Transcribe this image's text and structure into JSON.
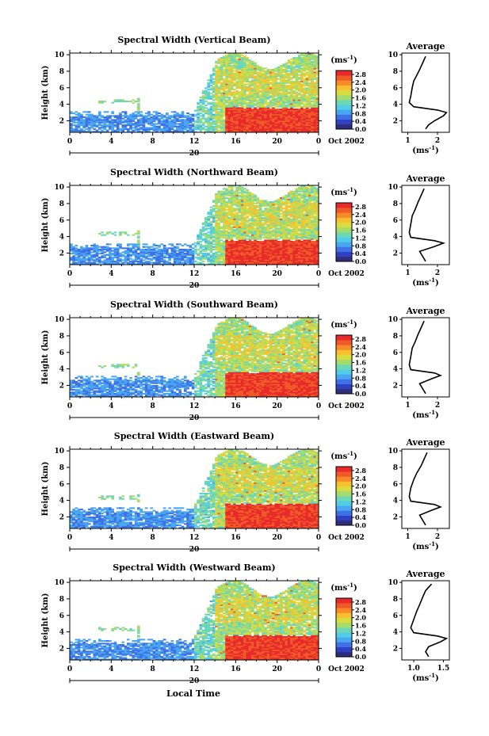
{
  "figure": {
    "date_label": "Oct 2002",
    "day_label": "20",
    "xlabel": "Local Time",
    "colorbar_unit_base": "(ms",
    "colorbar_unit_exp": "-1",
    "colorbar_unit_close": ")",
    "avg_xunit_base": "(ms",
    "avg_xunit_exp": "-1",
    "avg_xunit_close": ")",
    "colors": {
      "scale": [
        "#2e2e7a",
        "#3040c0",
        "#3f70e6",
        "#49a6f0",
        "#52cde8",
        "#6ed8b4",
        "#a6dc6c",
        "#d8dc40",
        "#f8c030",
        "#f88a28",
        "#f05a28",
        "#e82a2a"
      ]
    }
  },
  "chart_data": [
    {
      "type": "heatmap",
      "title": "Spectral Width (Vertical Beam)",
      "ylabel": "Height (km)",
      "xlim": [
        0,
        24
      ],
      "ylim": [
        0.6,
        10.2
      ],
      "xticks": [
        "0",
        "4",
        "8",
        "12",
        "16",
        "20",
        "0"
      ],
      "yticks": [
        "2",
        "4",
        "6",
        "8",
        "10"
      ],
      "colorbar": {
        "min": 0.0,
        "max": 3.0,
        "ticks": [
          "0.0",
          "0.4",
          "0.8",
          "1.2",
          "1.6",
          "2.0",
          "2.4",
          "2.8"
        ]
      },
      "average": {
        "title": "Average",
        "xlim": [
          0.8,
          2.4
        ],
        "xticks": [
          "1",
          "2"
        ],
        "ylim": [
          0.6,
          10.2
        ],
        "yticks": [
          "2",
          "4",
          "6",
          "8",
          "10"
        ],
        "profile": [
          [
            1.6,
            1.0
          ],
          [
            1.7,
            1.5
          ],
          [
            1.9,
            2.0
          ],
          [
            2.2,
            2.6
          ],
          [
            2.3,
            3.0
          ],
          [
            2.0,
            3.3
          ],
          [
            1.2,
            3.7
          ],
          [
            1.05,
            4.2
          ],
          [
            1.1,
            5.0
          ],
          [
            1.15,
            6.0
          ],
          [
            1.2,
            6.8
          ],
          [
            1.3,
            7.5
          ],
          [
            1.4,
            8.2
          ],
          [
            1.5,
            9.0
          ],
          [
            1.6,
            9.8
          ]
        ]
      }
    },
    {
      "type": "heatmap",
      "title": "Spectral Width (Northward Beam)",
      "ylabel": "Height (km)",
      "xlim": [
        0,
        24
      ],
      "ylim": [
        0.6,
        10.2
      ],
      "xticks": [
        "0",
        "4",
        "8",
        "12",
        "16",
        "20",
        "0"
      ],
      "yticks": [
        "2",
        "4",
        "6",
        "8",
        "10"
      ],
      "colorbar": {
        "min": 0.0,
        "max": 3.0,
        "ticks": [
          "0.0",
          "0.4",
          "0.8",
          "1.2",
          "1.6",
          "2.0",
          "2.4",
          "2.8"
        ]
      },
      "average": {
        "title": "Average",
        "xlim": [
          0.8,
          2.4
        ],
        "xticks": [
          "1",
          "2"
        ],
        "ylim": [
          0.6,
          10.2
        ],
        "yticks": [
          "2",
          "4",
          "6",
          "8",
          "10"
        ],
        "profile": [
          [
            1.6,
            1.0
          ],
          [
            1.5,
            1.6
          ],
          [
            1.4,
            2.2
          ],
          [
            1.9,
            2.8
          ],
          [
            2.2,
            3.2
          ],
          [
            1.9,
            3.5
          ],
          [
            1.1,
            3.9
          ],
          [
            1.05,
            4.5
          ],
          [
            1.1,
            5.5
          ],
          [
            1.15,
            6.5
          ],
          [
            1.25,
            7.3
          ],
          [
            1.35,
            8.2
          ],
          [
            1.45,
            9.0
          ],
          [
            1.55,
            9.8
          ]
        ]
      }
    },
    {
      "type": "heatmap",
      "title": "Spectral Width (Southward Beam)",
      "ylabel": "Height (km)",
      "xlim": [
        0,
        24
      ],
      "ylim": [
        0.6,
        10.2
      ],
      "xticks": [
        "0",
        "4",
        "8",
        "12",
        "16",
        "20",
        "0"
      ],
      "yticks": [
        "2",
        "4",
        "6",
        "8",
        "10"
      ],
      "colorbar": {
        "min": 0.0,
        "max": 3.0,
        "ticks": [
          "0.0",
          "0.4",
          "0.8",
          "1.2",
          "1.6",
          "2.0",
          "2.4",
          "2.8"
        ]
      },
      "average": {
        "title": "Average",
        "xlim": [
          0.8,
          2.4
        ],
        "xticks": [
          "1",
          "2"
        ],
        "ylim": [
          0.6,
          10.2
        ],
        "yticks": [
          "2",
          "4",
          "6",
          "8",
          "10"
        ],
        "profile": [
          [
            1.6,
            1.0
          ],
          [
            1.5,
            1.6
          ],
          [
            1.4,
            2.2
          ],
          [
            1.8,
            2.8
          ],
          [
            2.1,
            3.2
          ],
          [
            1.9,
            3.5
          ],
          [
            1.1,
            3.9
          ],
          [
            1.05,
            4.5
          ],
          [
            1.1,
            5.5
          ],
          [
            1.15,
            6.5
          ],
          [
            1.25,
            7.3
          ],
          [
            1.35,
            8.2
          ],
          [
            1.45,
            9.0
          ],
          [
            1.55,
            9.8
          ]
        ]
      }
    },
    {
      "type": "heatmap",
      "title": "Spectral Width (Eastward Beam)",
      "ylabel": "Height (km)",
      "xlim": [
        0,
        24
      ],
      "ylim": [
        0.6,
        10.2
      ],
      "xticks": [
        "0",
        "4",
        "8",
        "12",
        "16",
        "20",
        "0"
      ],
      "yticks": [
        "2",
        "4",
        "6",
        "8",
        "10"
      ],
      "colorbar": {
        "min": 0.0,
        "max": 3.0,
        "ticks": [
          "0.0",
          "0.4",
          "0.8",
          "1.2",
          "1.6",
          "2.0",
          "2.4",
          "2.8"
        ]
      },
      "average": {
        "title": "Average",
        "xlim": [
          0.8,
          2.4
        ],
        "xticks": [
          "1",
          "2"
        ],
        "ylim": [
          0.6,
          10.2
        ],
        "yticks": [
          "2",
          "4",
          "6",
          "8",
          "10"
        ],
        "profile": [
          [
            1.6,
            1.0
          ],
          [
            1.5,
            1.6
          ],
          [
            1.4,
            2.2
          ],
          [
            1.8,
            2.8
          ],
          [
            2.1,
            3.2
          ],
          [
            1.9,
            3.5
          ],
          [
            1.1,
            3.9
          ],
          [
            1.05,
            4.5
          ],
          [
            1.1,
            5.5
          ],
          [
            1.2,
            6.5
          ],
          [
            1.3,
            7.3
          ],
          [
            1.45,
            8.2
          ],
          [
            1.55,
            9.0
          ],
          [
            1.65,
            9.8
          ]
        ]
      }
    },
    {
      "type": "heatmap",
      "title": "Spectral Width (Westward Beam)",
      "ylabel": "Height (km)",
      "xlim": [
        0,
        24
      ],
      "ylim": [
        0.6,
        10.2
      ],
      "xticks": [
        "0",
        "4",
        "8",
        "12",
        "16",
        "20",
        "0"
      ],
      "yticks": [
        "2",
        "4",
        "6",
        "8",
        "10"
      ],
      "colorbar": {
        "min": 0.0,
        "max": 3.0,
        "ticks": [
          "0.0",
          "0.4",
          "0.8",
          "1.2",
          "1.6",
          "2.0",
          "2.4",
          "2.8"
        ]
      },
      "average": {
        "title": "Average",
        "xlim": [
          0.8,
          1.6
        ],
        "xticks": [
          "1.0",
          "1.5"
        ],
        "ylim": [
          0.6,
          10.2
        ],
        "yticks": [
          "2",
          "4",
          "6",
          "8",
          "10"
        ],
        "profile": [
          [
            1.25,
            1.0
          ],
          [
            1.2,
            1.6
          ],
          [
            1.25,
            2.2
          ],
          [
            1.45,
            2.8
          ],
          [
            1.55,
            3.2
          ],
          [
            1.4,
            3.5
          ],
          [
            1.0,
            3.9
          ],
          [
            0.95,
            4.5
          ],
          [
            1.0,
            5.5
          ],
          [
            1.05,
            6.5
          ],
          [
            1.1,
            7.3
          ],
          [
            1.15,
            8.2
          ],
          [
            1.2,
            9.0
          ],
          [
            1.3,
            9.8
          ]
        ]
      }
    }
  ]
}
